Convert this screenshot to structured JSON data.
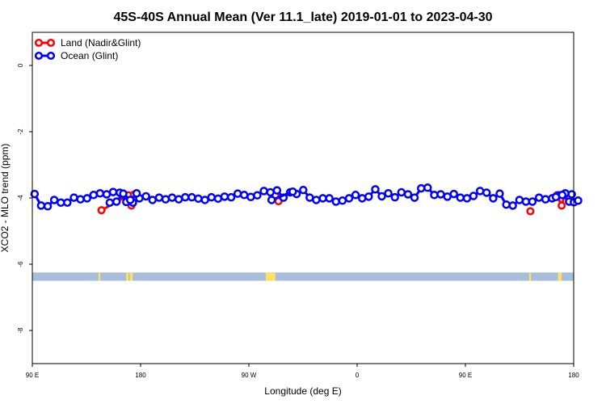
{
  "chart_data": {
    "type": "line",
    "title": "45S-40S Annual Mean (Ver 11.1_late)   2019-01-01 to 2023-04-30",
    "xlabel": "Longitude (deg E)",
    "ylabel": "XCO2 - MLO trend (ppm)",
    "xlim": [
      90,
      540
    ],
    "ylim": [
      -9,
      1
    ],
    "x_ticks": [
      {
        "value": 90,
        "label": "90 E"
      },
      {
        "value": 180,
        "label": "180"
      },
      {
        "value": 270,
        "label": "90 W"
      },
      {
        "value": 360,
        "label": "0"
      },
      {
        "value": 450,
        "label": "90 E"
      },
      {
        "value": 540,
        "label": "180"
      }
    ],
    "y_ticks": [
      {
        "value": 0,
        "label": "0"
      },
      {
        "value": -2,
        "label": "-2"
      },
      {
        "value": -4,
        "label": "-4"
      },
      {
        "value": -6,
        "label": "-6"
      },
      {
        "value": -8,
        "label": "-8"
      }
    ],
    "legend_position": "top-left",
    "series": [
      {
        "name": "Land (Nadir&Glint)",
        "color": "#ff0000",
        "segments": [
          [
            [
              147.5,
              -4.37
            ],
            [
              169.7,
              -3.92
            ]
          ],
          [
            [
              172.4,
              -4.23
            ],
            [
              174.4,
              -3.9
            ]
          ],
          [
            [
              292.1,
              -3.92
            ],
            [
              294.6,
              -4.1
            ]
          ],
          [
            [
              504.0,
              -4.4
            ]
          ],
          [
            [
              526.0,
              -3.92
            ],
            [
              530.0,
              -4.23
            ],
            [
              532.5,
              -3.9
            ]
          ]
        ]
      },
      {
        "name": "Ocean (Glint)",
        "color": "#0000ff",
        "segments": [
          [
            [
              91.9,
              -3.88
            ],
            [
              97.3,
              -4.23
            ],
            [
              102.8,
              -4.25
            ],
            [
              108.2,
              -4.06
            ],
            [
              113.7,
              -4.14
            ],
            [
              119.1,
              -4.14
            ],
            [
              124.6,
              -3.99
            ],
            [
              130.0,
              -4.04
            ],
            [
              135.5,
              -4.01
            ],
            [
              140.9,
              -3.91
            ],
            [
              146.3,
              -3.86
            ],
            [
              151.8,
              -3.89
            ],
            [
              157.2,
              -3.82
            ],
            [
              162.7,
              -3.84
            ],
            [
              168.1,
              -4.12
            ],
            [
              173.6,
              -4.14
            ],
            [
              179.0,
              -4.01
            ],
            [
              184.5,
              -3.95
            ],
            [
              189.9,
              -4.06
            ],
            [
              195.4,
              -3.99
            ],
            [
              200.8,
              -4.04
            ],
            [
              206.2,
              -3.99
            ],
            [
              211.7,
              -4.04
            ],
            [
              217.1,
              -3.98
            ],
            [
              222.6,
              -3.98
            ],
            [
              228.0,
              -4.02
            ],
            [
              233.5,
              -4.06
            ],
            [
              238.9,
              -3.98
            ],
            [
              244.4,
              -4.02
            ],
            [
              249.8,
              -3.96
            ],
            [
              255.3,
              -3.98
            ],
            [
              260.7,
              -3.87
            ],
            [
              266.1,
              -3.91
            ],
            [
              271.6,
              -3.97
            ],
            [
              277.0,
              -3.92
            ],
            [
              282.5,
              -3.79
            ],
            [
              287.9,
              -3.83
            ],
            [
              293.4,
              -3.77
            ],
            [
              298.8,
              -3.99
            ],
            [
              304.3,
              -3.83
            ],
            [
              309.7,
              -3.88
            ],
            [
              315.2,
              -3.76
            ],
            [
              320.6,
              -3.99
            ],
            [
              326.0,
              -4.06
            ],
            [
              331.5,
              -4.01
            ],
            [
              336.9,
              -4.01
            ],
            [
              342.4,
              -4.11
            ],
            [
              347.8,
              -4.08
            ],
            [
              353.3,
              -4.01
            ],
            [
              358.7,
              -3.91
            ],
            [
              364.2,
              -4.01
            ],
            [
              369.6,
              -3.96
            ],
            [
              375.1,
              -3.74
            ],
            [
              380.5,
              -3.95
            ],
            [
              385.9,
              -3.86
            ],
            [
              391.4,
              -3.98
            ],
            [
              396.8,
              -3.83
            ],
            [
              402.3,
              -3.89
            ],
            [
              407.7,
              -3.99
            ],
            [
              413.2,
              -3.71
            ],
            [
              418.6,
              -3.69
            ],
            [
              424.1,
              -3.91
            ],
            [
              429.5,
              -3.89
            ],
            [
              435.0,
              -3.96
            ],
            [
              440.4,
              -3.88
            ],
            [
              445.8,
              -3.99
            ],
            [
              451.3,
              -4.01
            ],
            [
              456.7,
              -3.94
            ],
            [
              462.2,
              -3.79
            ],
            [
              467.6,
              -3.84
            ],
            [
              473.1,
              -4.01
            ],
            [
              478.5,
              -3.87
            ],
            [
              484.0,
              -4.2
            ],
            [
              489.4,
              -4.23
            ],
            [
              494.9,
              -4.06
            ],
            [
              500.3,
              -4.11
            ],
            [
              505.7,
              -4.11
            ],
            [
              511.2,
              -3.99
            ],
            [
              516.6,
              -4.04
            ],
            [
              522.1,
              -4.01
            ],
            [
              527.5,
              -3.92
            ],
            [
              533.0,
              -3.86
            ],
            [
              538.4,
              -3.89
            ]
          ],
          [
            [
              154.4,
              -4.14
            ],
            [
              160.0,
              -4.11
            ],
            [
              165.6,
              -3.87
            ],
            [
              171.4,
              -4.06
            ],
            [
              176.7,
              -3.86
            ]
          ],
          [
            [
              288.9,
              -4.06
            ],
            [
              306.5,
              -3.81
            ]
          ],
          [
            [
              525.2,
              -3.97
            ],
            [
              530.5,
              -3.91
            ],
            [
              536.2,
              -4.11
            ],
            [
              540.2,
              -4.13
            ],
            [
              543.7,
              -4.08
            ]
          ]
        ]
      }
    ],
    "land_mask_band": {
      "y_range": [
        -6.5,
        -6.25
      ],
      "ocean_color": "#a6bddb",
      "land_color": "#ffe066",
      "land_spans": [
        [
          145,
          146.5
        ],
        [
          168,
          170
        ],
        [
          171,
          172
        ],
        [
          172,
          173.5
        ],
        [
          284,
          292
        ],
        [
          503,
          504.5
        ],
        [
          527,
          529
        ],
        [
          529,
          530
        ]
      ]
    }
  }
}
